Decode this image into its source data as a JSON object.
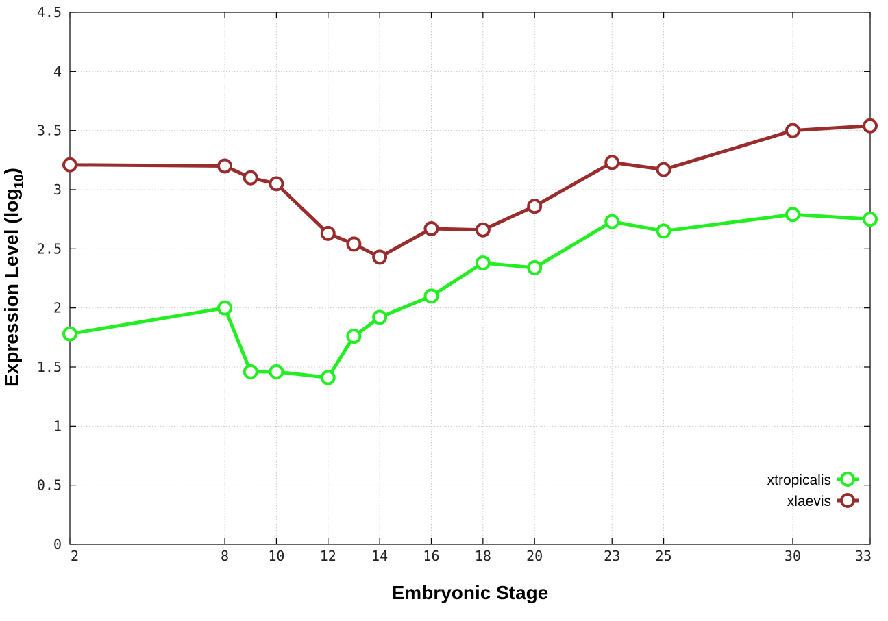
{
  "chart_data": {
    "type": "line",
    "xlabel": "Embryonic Stage",
    "ylabel_main": "Expression Level (log",
    "ylabel_sub": "10",
    "ylabel_close": ")",
    "x_ticks": [
      2,
      8,
      10,
      12,
      14,
      16,
      18,
      20,
      23,
      25,
      30,
      33
    ],
    "y_ticks": [
      "0",
      "0.5",
      "1",
      "1.5",
      "2",
      "2.5",
      "3",
      "3.5",
      "4",
      "4.5"
    ],
    "xlim": [
      2,
      33
    ],
    "ylim": [
      0,
      4.5
    ],
    "grid": true,
    "legend_position": "bottom-right",
    "series": [
      {
        "name": "xtropicalis",
        "color": "#22ee22",
        "marker": "open-circle",
        "x": [
          2,
          8,
          9,
          10,
          12,
          13,
          14,
          16,
          18,
          20,
          23,
          25,
          30,
          33
        ],
        "y": [
          1.78,
          2.0,
          1.46,
          1.46,
          1.41,
          1.76,
          1.92,
          2.1,
          2.38,
          2.34,
          2.73,
          2.65,
          2.79,
          2.75
        ]
      },
      {
        "name": "xlaevis",
        "color": "#992c2c",
        "marker": "open-circle",
        "x": [
          2,
          8,
          9,
          10,
          12,
          13,
          14,
          16,
          18,
          20,
          23,
          25,
          30,
          33
        ],
        "y": [
          3.21,
          3.2,
          3.1,
          3.05,
          2.63,
          2.54,
          2.43,
          2.67,
          2.66,
          2.86,
          3.23,
          3.17,
          3.5,
          3.54
        ]
      }
    ]
  }
}
